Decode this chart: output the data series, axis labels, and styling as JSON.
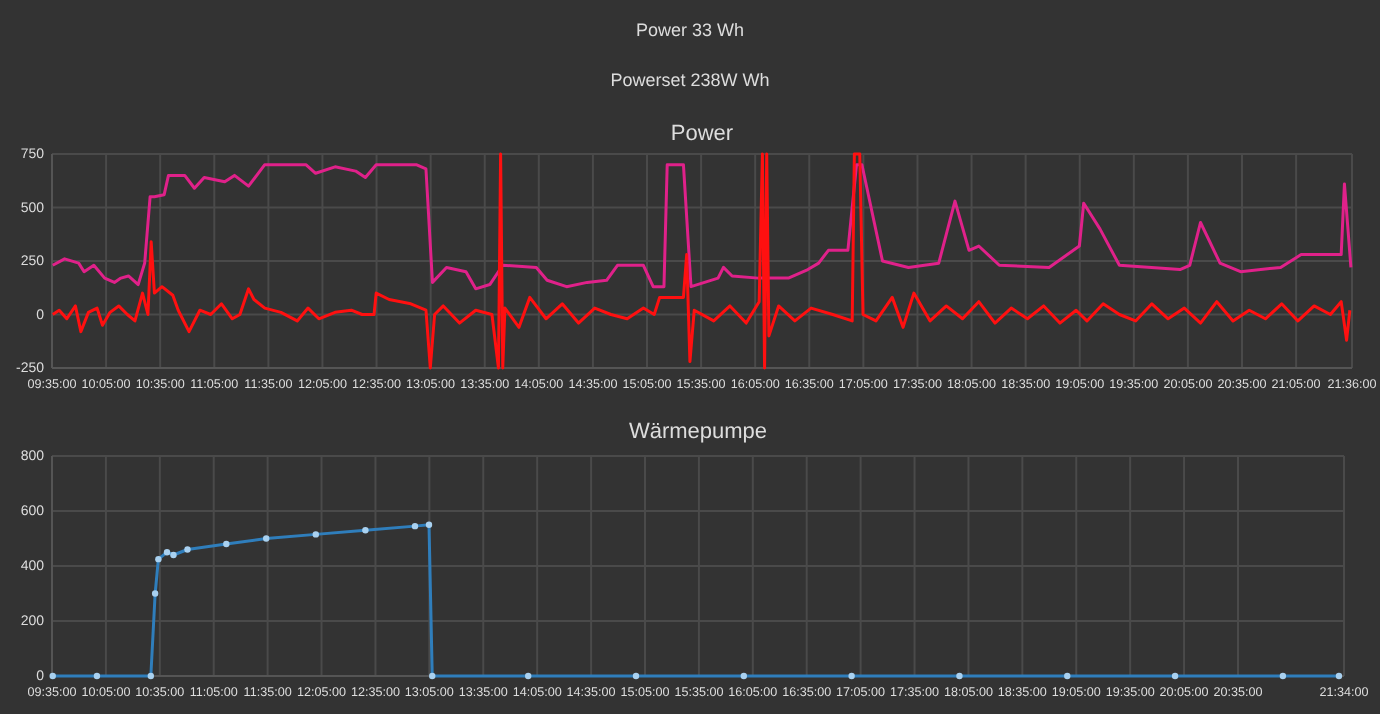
{
  "chart_data": [
    {
      "type": "other",
      "annotations": [
        "Power 33 Wh",
        "Powerset 238W Wh"
      ]
    },
    {
      "type": "line",
      "title": "Power",
      "xlim": [
        9.5833,
        21.6
      ],
      "ylim": [
        -250,
        750
      ],
      "yticks": [
        -250,
        0,
        250,
        500,
        750
      ],
      "grid": true,
      "xticks": [
        {
          "value": 9.5833,
          "label": "09:35:00"
        },
        {
          "value": 10.0833,
          "label": "10:05:00"
        },
        {
          "value": 10.5833,
          "label": "10:35:00"
        },
        {
          "value": 11.0833,
          "label": "11:05:00"
        },
        {
          "value": 11.5833,
          "label": "11:35:00"
        },
        {
          "value": 12.0833,
          "label": "12:05:00"
        },
        {
          "value": 12.5833,
          "label": "12:35:00"
        },
        {
          "value": 13.0833,
          "label": "13:05:00"
        },
        {
          "value": 13.5833,
          "label": "13:35:00"
        },
        {
          "value": 14.0833,
          "label": "14:05:00"
        },
        {
          "value": 14.5833,
          "label": "14:35:00"
        },
        {
          "value": 15.0833,
          "label": "15:05:00"
        },
        {
          "value": 15.5833,
          "label": "15:35:00"
        },
        {
          "value": 16.0833,
          "label": "16:05:00"
        },
        {
          "value": 16.5833,
          "label": "16:35:00"
        },
        {
          "value": 17.0833,
          "label": "17:05:00"
        },
        {
          "value": 17.5833,
          "label": "17:35:00"
        },
        {
          "value": 18.0833,
          "label": "18:05:00"
        },
        {
          "value": 18.5833,
          "label": "18:35:00"
        },
        {
          "value": 19.0833,
          "label": "19:05:00"
        },
        {
          "value": 19.5833,
          "label": "19:35:00"
        },
        {
          "value": 20.0833,
          "label": "20:05:00"
        },
        {
          "value": 20.5833,
          "label": "20:35:00"
        },
        {
          "value": 21.0833,
          "label": "21:05:00"
        },
        {
          "value": 21.6,
          "label": "21:36:00"
        }
      ],
      "series": [
        {
          "color": "#e0218a",
          "x": [
            9.59,
            9.7,
            9.83,
            9.88,
            9.97,
            10.07,
            10.16,
            10.22,
            10.29,
            10.38,
            10.44,
            10.49,
            10.53,
            10.62,
            10.66,
            10.81,
            10.9,
            10.99,
            11.18,
            11.27,
            11.4,
            11.55,
            11.93,
            12.02,
            12.2,
            12.39,
            12.48,
            12.58,
            12.95,
            13.04,
            13.1,
            13.23,
            13.41,
            13.5,
            13.63,
            13.75,
            14.06,
            14.16,
            14.34,
            14.53,
            14.71,
            14.81,
            15.05,
            15.14,
            15.24,
            15.27,
            15.42,
            15.49,
            15.74,
            15.79,
            15.87,
            16.11,
            16.39,
            16.57,
            16.67,
            16.76,
            16.94,
            17.02,
            17.07,
            17.26,
            17.5,
            17.78,
            17.93,
            18.06,
            18.15,
            18.34,
            18.8,
            19.08,
            19.12,
            19.27,
            19.45,
            20.01,
            20.1,
            20.2,
            20.38,
            20.57,
            20.94,
            21.13,
            21.31,
            21.5,
            21.53,
            21.59
          ],
          "values": [
            230,
            260,
            240,
            200,
            230,
            170,
            150,
            170,
            180,
            140,
            240,
            550,
            550,
            560,
            650,
            650,
            590,
            640,
            620,
            650,
            600,
            700,
            700,
            660,
            690,
            670,
            640,
            700,
            700,
            680,
            150,
            220,
            200,
            120,
            140,
            230,
            220,
            160,
            130,
            150,
            160,
            230,
            230,
            130,
            130,
            700,
            700,
            130,
            170,
            220,
            180,
            170,
            170,
            210,
            240,
            300,
            300,
            700,
            700,
            250,
            220,
            240,
            530,
            300,
            320,
            230,
            220,
            320,
            520,
            400,
            230,
            210,
            230,
            430,
            240,
            200,
            220,
            280,
            280,
            280,
            610,
            220
          ]
        },
        {
          "color": "#ff1010",
          "x": [
            9.59,
            9.65,
            9.72,
            9.8,
            9.85,
            9.92,
            10.0,
            10.05,
            10.12,
            10.2,
            10.28,
            10.35,
            10.42,
            10.47,
            10.5,
            10.53,
            10.6,
            10.7,
            10.75,
            10.85,
            10.95,
            11.05,
            11.15,
            11.25,
            11.32,
            11.4,
            11.45,
            11.55,
            11.7,
            11.85,
            11.95,
            12.05,
            12.2,
            12.35,
            12.45,
            12.56,
            12.58,
            12.7,
            12.9,
            13.04,
            13.08,
            13.12,
            13.2,
            13.35,
            13.5,
            13.65,
            13.71,
            13.73,
            13.75,
            13.77,
            13.9,
            14.0,
            14.15,
            14.3,
            14.45,
            14.6,
            14.75,
            14.9,
            15.05,
            15.15,
            15.2,
            15.3,
            15.42,
            15.45,
            15.48,
            15.52,
            15.7,
            15.85,
            16.0,
            16.12,
            16.15,
            16.17,
            16.19,
            16.21,
            16.3,
            16.45,
            16.6,
            16.8,
            16.98,
            17.0,
            17.05,
            17.08,
            17.2,
            17.35,
            17.45,
            17.55,
            17.7,
            17.85,
            18.0,
            18.15,
            18.3,
            18.45,
            18.6,
            18.75,
            18.9,
            19.05,
            19.15,
            19.3,
            19.45,
            19.6,
            19.75,
            19.9,
            20.05,
            20.2,
            20.35,
            20.5,
            20.65,
            20.8,
            20.95,
            21.1,
            21.25,
            21.4,
            21.5,
            21.55,
            21.58
          ],
          "values": [
            0,
            20,
            -20,
            40,
            -80,
            10,
            30,
            -50,
            10,
            40,
            0,
            -30,
            100,
            0,
            340,
            100,
            130,
            90,
            20,
            -80,
            20,
            0,
            50,
            -20,
            0,
            120,
            70,
            30,
            10,
            -30,
            30,
            -20,
            10,
            20,
            0,
            0,
            100,
            70,
            50,
            20,
            -250,
            0,
            40,
            -40,
            20,
            0,
            -250,
            750,
            -250,
            30,
            -60,
            80,
            -20,
            50,
            -40,
            30,
            0,
            -20,
            30,
            0,
            80,
            80,
            80,
            280,
            -220,
            20,
            -30,
            40,
            -40,
            60,
            750,
            -250,
            750,
            -100,
            40,
            -30,
            30,
            0,
            -30,
            750,
            750,
            0,
            -30,
            80,
            -60,
            100,
            -30,
            40,
            -20,
            60,
            -40,
            30,
            -20,
            40,
            -40,
            20,
            -30,
            50,
            0,
            -30,
            50,
            -20,
            30,
            -40,
            60,
            -30,
            20,
            -20,
            50,
            -30,
            40,
            0,
            60,
            -120,
            20
          ]
        }
      ]
    },
    {
      "type": "line",
      "title": "Wärmepumpe",
      "xlim": [
        9.5833,
        21.5667
      ],
      "ylim": [
        0,
        800
      ],
      "yticks": [
        0,
        200,
        400,
        600,
        800
      ],
      "grid": true,
      "marker": "circle",
      "xticks": [
        {
          "value": 9.5833,
          "label": "09:35:00"
        },
        {
          "value": 10.0833,
          "label": "10:05:00"
        },
        {
          "value": 10.5833,
          "label": "10:35:00"
        },
        {
          "value": 11.0833,
          "label": "11:05:00"
        },
        {
          "value": 11.5833,
          "label": "11:35:00"
        },
        {
          "value": 12.0833,
          "label": "12:05:00"
        },
        {
          "value": 12.5833,
          "label": "12:35:00"
        },
        {
          "value": 13.0833,
          "label": "13:05:00"
        },
        {
          "value": 13.5833,
          "label": "13:35:00"
        },
        {
          "value": 14.0833,
          "label": "14:05:00"
        },
        {
          "value": 14.5833,
          "label": "14:35:00"
        },
        {
          "value": 15.0833,
          "label": "15:05:00"
        },
        {
          "value": 15.5833,
          "label": "15:35:00"
        },
        {
          "value": 16.0833,
          "label": "16:05:00"
        },
        {
          "value": 16.5833,
          "label": "16:35:00"
        },
        {
          "value": 17.0833,
          "label": "17:05:00"
        },
        {
          "value": 17.5833,
          "label": "17:35:00"
        },
        {
          "value": 18.0833,
          "label": "18:05:00"
        },
        {
          "value": 18.5833,
          "label": "18:35:00"
        },
        {
          "value": 19.0833,
          "label": "19:05:00"
        },
        {
          "value": 19.5833,
          "label": "19:35:00"
        },
        {
          "value": 20.0833,
          "label": "20:05:00"
        },
        {
          "value": 20.5833,
          "label": "20:35:00"
        },
        {
          "value": 21.5667,
          "label": "21:34:00"
        }
      ],
      "series": [
        {
          "color": "#2f7ebc",
          "x": [
            9.59,
            10.0,
            10.5,
            10.54,
            10.57,
            10.65,
            10.71,
            10.84,
            11.2,
            11.57,
            12.03,
            12.49,
            12.95,
            13.08,
            13.11,
            14.0,
            15.0,
            16.0,
            17.0,
            18.0,
            19.0,
            20.0,
            21.0,
            21.52
          ],
          "values": [
            0,
            0,
            0,
            300,
            425,
            450,
            440,
            460,
            480,
            500,
            515,
            530,
            545,
            550,
            0,
            0,
            0,
            0,
            0,
            0,
            0,
            0,
            0,
            0
          ]
        }
      ]
    }
  ]
}
